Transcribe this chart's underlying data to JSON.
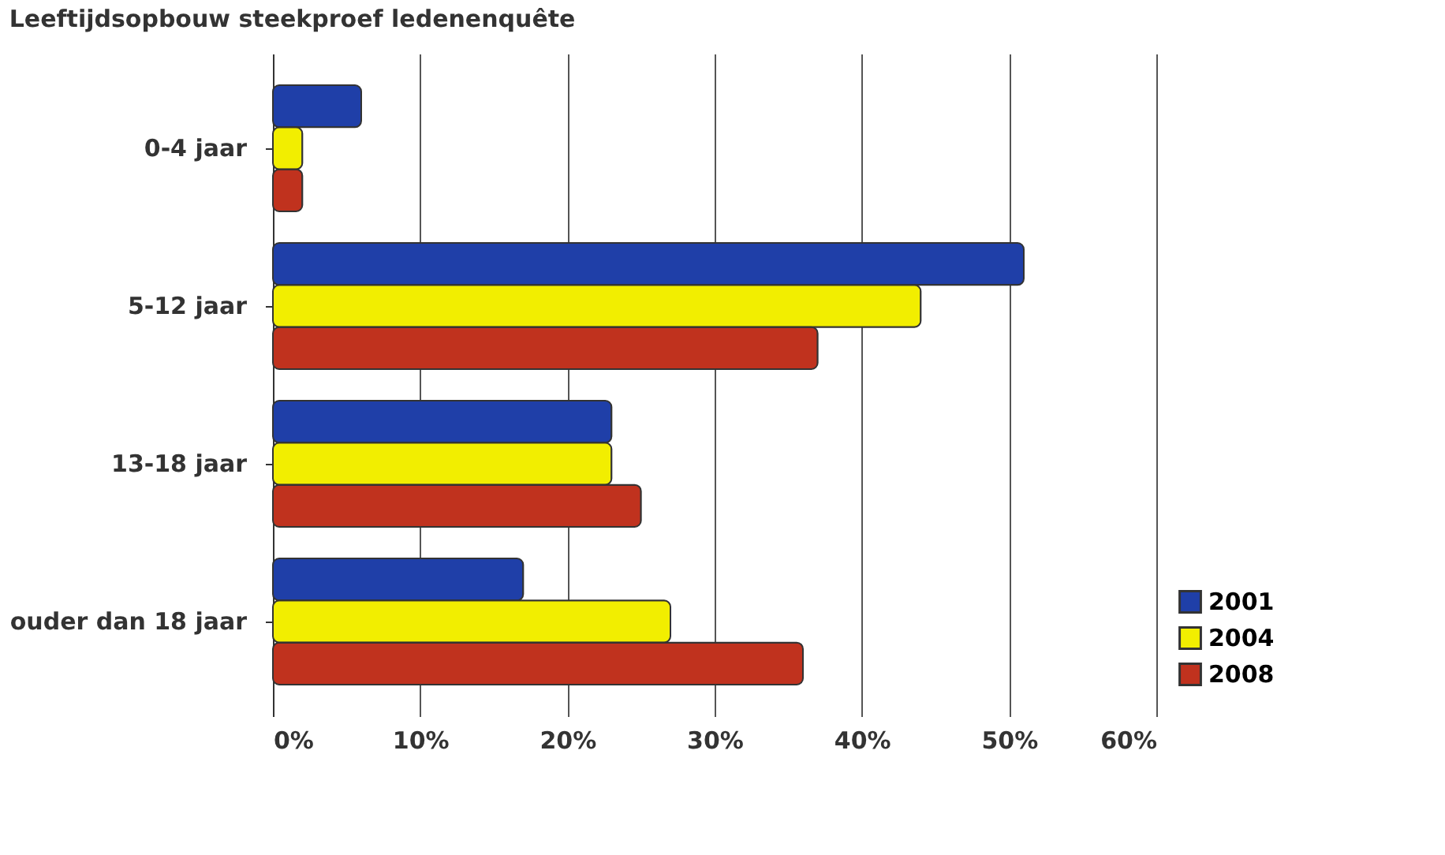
{
  "chart_data": {
    "type": "bar",
    "orientation": "horizontal",
    "title": "Leeftijdsopbouw steekproef ledenenquête",
    "categories": [
      "0-4 jaar",
      "5-12 jaar",
      "13-18 jaar",
      "ouder dan 18 jaar"
    ],
    "series": [
      {
        "name": "2001",
        "color": "#1f3fa8",
        "values": [
          6,
          51,
          23,
          17
        ]
      },
      {
        "name": "2004",
        "color": "#f2ee00",
        "values": [
          2,
          44,
          23,
          27
        ]
      },
      {
        "name": "2008",
        "color": "#c0321e",
        "values": [
          2,
          37,
          25,
          36
        ]
      }
    ],
    "xlim": [
      0,
      60
    ],
    "xticks": [
      {
        "value": 0,
        "label": "0%"
      },
      {
        "value": 10,
        "label": "10%"
      },
      {
        "value": 20,
        "label": "20%"
      },
      {
        "value": 30,
        "label": "30%"
      },
      {
        "value": 40,
        "label": "40%"
      },
      {
        "value": 50,
        "label": "50%"
      },
      {
        "value": 60,
        "label": "60%"
      }
    ],
    "grid": "x",
    "legend": "bottom right"
  }
}
